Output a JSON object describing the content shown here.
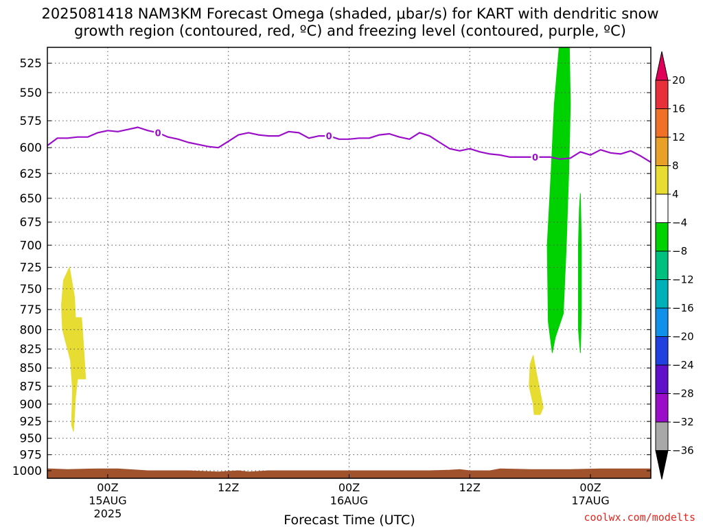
{
  "title_line1": "2025081418 NAM3KM Forecast Omega (shaded, μbar/s) for KART with dendritic snow",
  "title_line2": "growth region (contoured, red, ºC) and freezing level (contoured, purple, ºC)",
  "credit": "coolwx.com/modelts",
  "chart_data": {
    "type": "area",
    "title": "2025081418 NAM3KM Forecast Omega (shaded, μbar/s) for KART with dendritic snow growth region (contoured, red, ºC) and freezing level (contoured, purple, ºC)",
    "xlabel": "Forecast Time (UTC)",
    "ylabel": "",
    "x_unit": "hours after 2025-08-14 18Z",
    "xlim": [
      0,
      60
    ],
    "ylim": [
      1012,
      512
    ],
    "y_scale": "pressure (log)",
    "grid": true,
    "y_ticks": [
      525,
      550,
      575,
      600,
      625,
      650,
      675,
      700,
      725,
      750,
      775,
      800,
      825,
      850,
      875,
      900,
      925,
      950,
      975,
      1000
    ],
    "x_ticks": [
      {
        "x": 6,
        "label": "00Z",
        "sub1": "15AUG",
        "sub2": "2025"
      },
      {
        "x": 18,
        "label": "12Z",
        "sub1": "",
        "sub2": ""
      },
      {
        "x": 30,
        "label": "00Z",
        "sub1": "16AUG",
        "sub2": ""
      },
      {
        "x": 42,
        "label": "12Z",
        "sub1": "",
        "sub2": ""
      },
      {
        "x": 54,
        "label": "00Z",
        "sub1": "17AUG",
        "sub2": ""
      }
    ],
    "freezing_level": {
      "name": "freezing level",
      "color": "#9b0ec9",
      "contour_label": "0",
      "label_x": [
        11,
        28,
        48.5
      ],
      "points": [
        [
          0,
          598
        ],
        [
          1,
          591
        ],
        [
          2,
          591
        ],
        [
          3,
          590
        ],
        [
          4,
          590
        ],
        [
          5,
          586
        ],
        [
          6,
          584
        ],
        [
          7,
          585
        ],
        [
          8,
          583
        ],
        [
          9,
          581
        ],
        [
          10,
          584
        ],
        [
          11,
          586
        ],
        [
          12,
          590
        ],
        [
          13,
          592
        ],
        [
          14,
          595
        ],
        [
          15,
          597
        ],
        [
          16,
          599
        ],
        [
          17,
          600
        ],
        [
          18,
          594
        ],
        [
          19,
          588
        ],
        [
          20,
          586
        ],
        [
          21,
          588
        ],
        [
          22,
          589
        ],
        [
          23,
          589
        ],
        [
          24,
          585
        ],
        [
          25,
          586
        ],
        [
          26,
          591
        ],
        [
          27,
          589
        ],
        [
          28,
          589
        ],
        [
          29,
          592
        ],
        [
          30,
          592
        ],
        [
          31,
          591
        ],
        [
          32,
          591
        ],
        [
          33,
          588
        ],
        [
          34,
          587
        ],
        [
          35,
          590
        ],
        [
          36,
          592
        ],
        [
          37,
          586
        ],
        [
          38,
          589
        ],
        [
          39,
          595
        ],
        [
          40,
          601
        ],
        [
          41,
          603
        ],
        [
          42,
          601
        ],
        [
          43,
          604
        ],
        [
          44,
          606
        ],
        [
          45,
          607
        ],
        [
          46,
          609
        ],
        [
          47,
          609
        ],
        [
          48,
          609
        ],
        [
          49,
          609
        ],
        [
          50,
          609
        ],
        [
          51,
          611
        ],
        [
          52,
          610
        ],
        [
          53,
          604
        ],
        [
          54,
          607
        ],
        [
          55,
          602
        ],
        [
          56,
          605
        ],
        [
          57,
          606
        ],
        [
          58,
          603
        ],
        [
          59,
          608
        ],
        [
          60,
          614
        ]
      ]
    },
    "omega_regions": [
      {
        "range": "-8 to -4",
        "color": "#00d100",
        "polygon": [
          [
            50.9,
            510
          ],
          [
            51.9,
            510
          ],
          [
            52.0,
            560
          ],
          [
            51.85,
            620
          ],
          [
            51.6,
            700
          ],
          [
            51.3,
            780
          ],
          [
            50.5,
            810
          ],
          [
            50.2,
            830
          ],
          [
            49.8,
            790
          ],
          [
            49.7,
            700
          ],
          [
            50.1,
            620
          ],
          [
            50.4,
            560
          ]
        ]
      },
      {
        "range": "-8 to -4",
        "color": "#00d100",
        "polygon": [
          [
            53.0,
            645
          ],
          [
            53.1,
            700
          ],
          [
            53.1,
            780
          ],
          [
            53.0,
            830
          ],
          [
            52.8,
            800
          ],
          [
            52.8,
            700
          ],
          [
            52.9,
            660
          ]
        ]
      },
      {
        "range": "4 to 8",
        "color": "#e6dc32",
        "polygon": [
          [
            2.2,
            725
          ],
          [
            2.7,
            760
          ],
          [
            2.8,
            785
          ],
          [
            3.4,
            785
          ],
          [
            3.6,
            820
          ],
          [
            3.8,
            865
          ],
          [
            3.0,
            865
          ],
          [
            2.8,
            890
          ],
          [
            2.6,
            940
          ],
          [
            2.4,
            930
          ],
          [
            2.5,
            880
          ],
          [
            2.3,
            840
          ],
          [
            1.5,
            800
          ],
          [
            1.4,
            770
          ],
          [
            1.6,
            740
          ]
        ]
      },
      {
        "range": "4 to 8",
        "color": "#e6dc32",
        "polygon": [
          [
            48.3,
            833
          ],
          [
            48.6,
            855
          ],
          [
            49.1,
            890
          ],
          [
            49.3,
            905
          ],
          [
            49.0,
            915
          ],
          [
            48.4,
            915
          ],
          [
            48.3,
            900
          ],
          [
            47.9,
            875
          ],
          [
            48.0,
            845
          ]
        ]
      }
    ],
    "terrain": {
      "color": "#a0522d",
      "top_pressure": [
        [
          0,
          997
        ],
        [
          2,
          998
        ],
        [
          5,
          997
        ],
        [
          7,
          997
        ],
        [
          10,
          1000
        ],
        [
          14,
          1000
        ],
        [
          17,
          1002
        ],
        [
          19,
          1000
        ],
        [
          20,
          1002
        ],
        [
          22,
          1000
        ],
        [
          30,
          1000
        ],
        [
          38,
          1000
        ],
        [
          40,
          999
        ],
        [
          41,
          998
        ],
        [
          42,
          1000
        ],
        [
          44,
          1000
        ],
        [
          45,
          997
        ],
        [
          48,
          998
        ],
        [
          52,
          998
        ],
        [
          55,
          997
        ],
        [
          60,
          997
        ]
      ]
    },
    "colorbar": {
      "labels": [
        20,
        16,
        12,
        8,
        4,
        -4,
        -8,
        -12,
        -16,
        -20,
        -24,
        -28,
        -32,
        -36
      ],
      "colors_top_to_bottom": [
        "#e0005a",
        "#e8303a",
        "#f07028",
        "#e8a028",
        "#e6dc32",
        "#ffffff",
        "#00d100",
        "#00c080",
        "#00b0b8",
        "#1090e8",
        "#2040e0",
        "#6010c8",
        "#9b0ec9",
        "#a8a8a8",
        "#000000"
      ]
    }
  }
}
